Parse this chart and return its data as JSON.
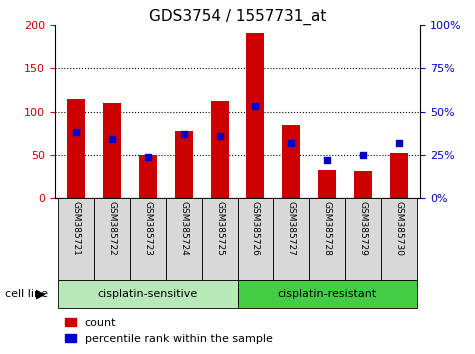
{
  "title": "GDS3754 / 1557731_at",
  "samples": [
    "GSM385721",
    "GSM385722",
    "GSM385723",
    "GSM385724",
    "GSM385725",
    "GSM385726",
    "GSM385727",
    "GSM385728",
    "GSM385729",
    "GSM385730"
  ],
  "count_values": [
    114,
    110,
    50,
    78,
    112,
    190,
    85,
    33,
    31,
    52
  ],
  "percentile_values": [
    38,
    34,
    24,
    37,
    36,
    53,
    32,
    22,
    25,
    32
  ],
  "left_ylim": [
    0,
    200
  ],
  "right_ylim": [
    0,
    100
  ],
  "left_yticks": [
    0,
    50,
    100,
    150,
    200
  ],
  "right_yticks": [
    0,
    25,
    50,
    75,
    100
  ],
  "right_yticklabels": [
    "0%",
    "25%",
    "50%",
    "75%",
    "100%"
  ],
  "bar_color": "#cc0000",
  "dot_color": "#0000cc",
  "bar_width": 0.5,
  "groups": [
    {
      "label": "cisplatin-sensitive",
      "indices": [
        0,
        1,
        2,
        3,
        4
      ],
      "color": "#b8e8b8"
    },
    {
      "label": "cisplatin-resistant",
      "indices": [
        5,
        6,
        7,
        8,
        9
      ],
      "color": "#44cc44"
    }
  ],
  "group_label": "cell line",
  "legend_items": [
    {
      "label": "count",
      "color": "#cc0000"
    },
    {
      "label": "percentile rank within the sample",
      "color": "#0000cc"
    }
  ],
  "left_label_color": "#cc0000",
  "right_label_color": "#0000cc",
  "title_fontsize": 11,
  "tick_fontsize": 8,
  "sample_label_fontsize": 6.5,
  "group_fontsize": 8,
  "legend_fontsize": 8,
  "axis_bg_color": "#d8d8d8"
}
